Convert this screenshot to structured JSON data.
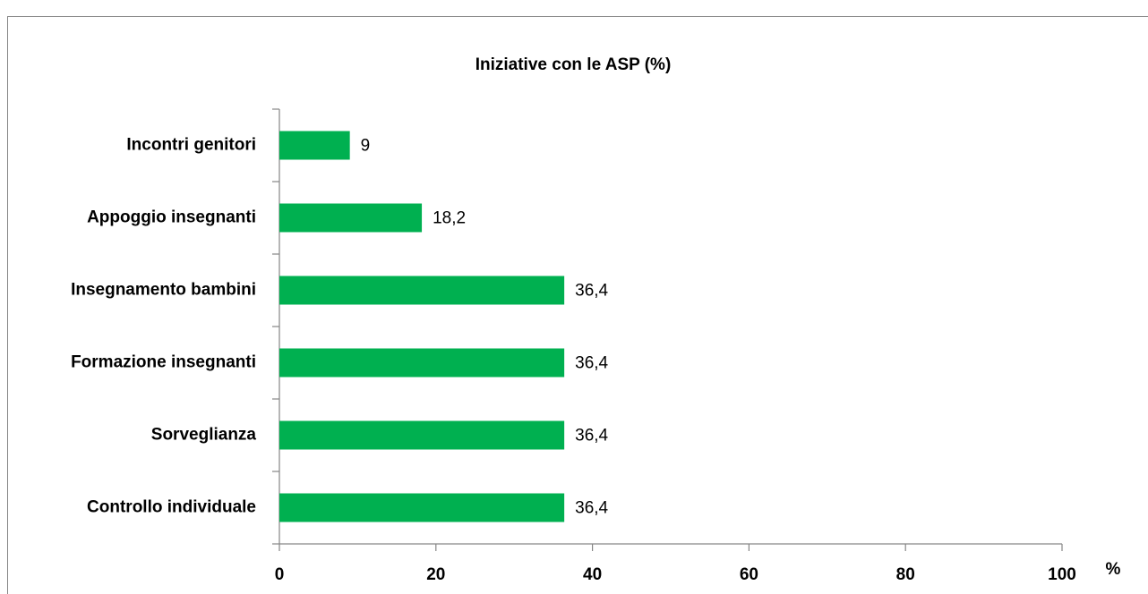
{
  "chart_data": {
    "type": "barh",
    "title": "Iniziative con le ASP (%)",
    "x_label": "%",
    "categories": [
      "Incontri genitori",
      "Appoggio insegnanti",
      "Insegnamento bambini",
      "Formazione insegnanti",
      "Sorveglianza",
      "Controllo individuale"
    ],
    "values": [
      9,
      18.2,
      36.4,
      36.4,
      36.4,
      36.4
    ],
    "value_labels": [
      "9",
      "18,2",
      "36,4",
      "36,4",
      "36,4",
      "36,4"
    ],
    "color": "#00b050",
    "xlim": [
      0,
      100
    ],
    "xticks": [
      0,
      20,
      40,
      60,
      80,
      100
    ],
    "grid": false
  }
}
